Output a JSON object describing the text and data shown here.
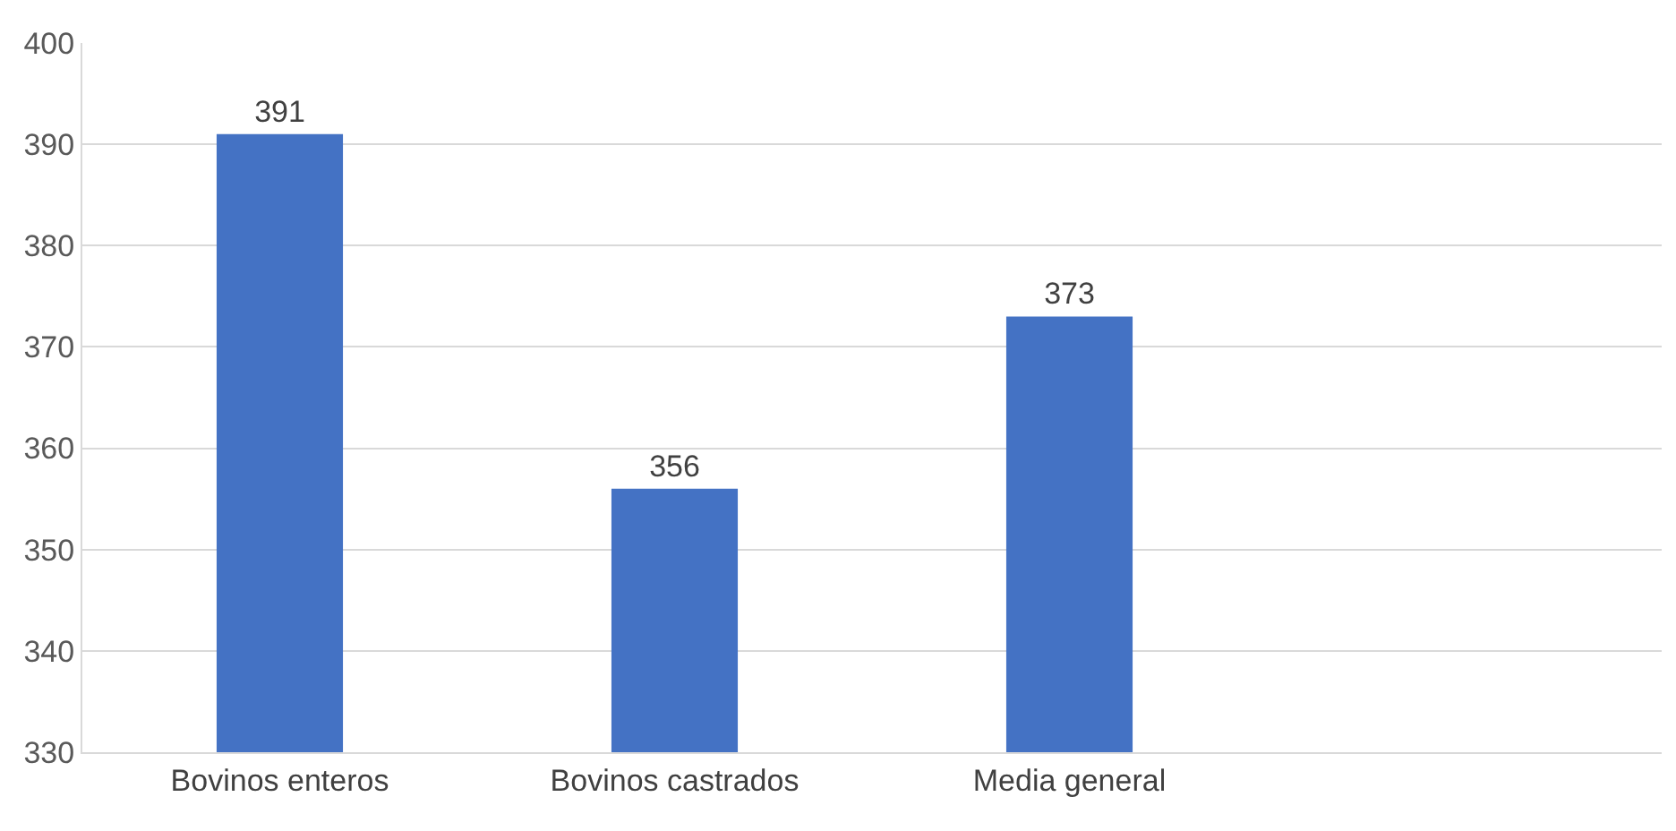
{
  "chart_data": {
    "type": "bar",
    "categories": [
      "Bovinos enteros",
      "Bovinos castrados",
      "Media general",
      null
    ],
    "values": [
      391,
      356,
      373,
      null
    ],
    "color": "#4472c4",
    "ylim": [
      330,
      400
    ],
    "yticks": [
      330,
      340,
      350,
      360,
      370,
      380,
      390,
      400
    ],
    "grid": "y",
    "data_labels": true
  }
}
